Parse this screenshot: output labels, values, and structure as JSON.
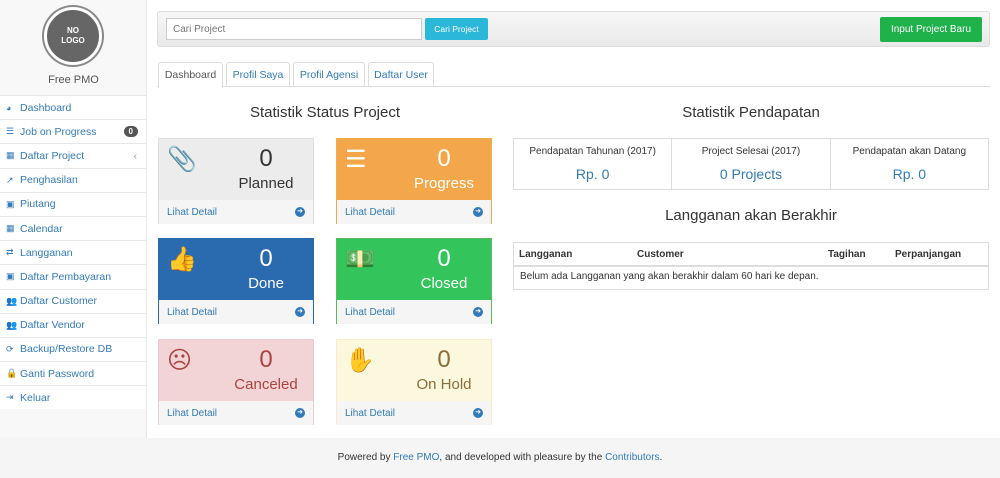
{
  "sidebar": {
    "logo_text": "NO LOGO",
    "brand": "Free PMO",
    "items": [
      {
        "label": "Dashboard",
        "icon": "tachometer-icon",
        "glyph": "◕"
      },
      {
        "label": "Job on Progress",
        "icon": "tasks-icon",
        "glyph": "☰",
        "badge": "0"
      },
      {
        "label": "Daftar Project",
        "icon": "table-icon",
        "glyph": "▦",
        "chevron": "‹"
      },
      {
        "label": "Penghasilan",
        "icon": "line-chart-icon",
        "glyph": "↗"
      },
      {
        "label": "Piutang",
        "icon": "money-icon",
        "glyph": "▣"
      },
      {
        "label": "Calendar",
        "icon": "calendar-icon",
        "glyph": "▦"
      },
      {
        "label": "Langganan",
        "icon": "retweet-icon",
        "glyph": "⇄"
      },
      {
        "label": "Daftar Pembayaran",
        "icon": "money-icon",
        "glyph": "▣"
      },
      {
        "label": "Daftar Customer",
        "icon": "users-icon",
        "glyph": "👥"
      },
      {
        "label": "Daftar Vendor",
        "icon": "users-icon",
        "glyph": "👥"
      },
      {
        "label": "Backup/Restore DB",
        "icon": "refresh-icon",
        "glyph": "⟳"
      },
      {
        "label": "Ganti Password",
        "icon": "lock-icon",
        "glyph": "🔒"
      },
      {
        "label": "Keluar",
        "icon": "sign-out-icon",
        "glyph": "⇥"
      }
    ]
  },
  "topbar": {
    "search_placeholder": "Cari Project",
    "search_button": "Cari Project",
    "new_button": "Input Project Baru"
  },
  "tabs": [
    "Dashboard",
    "Profil Saya",
    "Profil Agensi",
    "Daftar User"
  ],
  "status": {
    "title": "Statistik Status Project",
    "detail_label": "Lihat Detail",
    "boxes": [
      {
        "label": "Planned",
        "count": "0",
        "icon": "paperclip-icon",
        "glyph": "📎",
        "bg": "#ececec",
        "fg": "#333",
        "border": "#ddd"
      },
      {
        "label": "Progress",
        "count": "0",
        "icon": "tasks-icon",
        "glyph": "☰",
        "bg": "#f3a74a",
        "fg": "#fff",
        "border": "#f0ad4e"
      },
      {
        "label": "Done",
        "count": "0",
        "icon": "thumbs-up-icon",
        "glyph": "👍",
        "bg": "#2a6aae",
        "fg": "#fff",
        "border": "#2a6aae"
      },
      {
        "label": "Closed",
        "count": "0",
        "icon": "money-icon",
        "glyph": "💵",
        "bg": "#33c45b",
        "fg": "#fff",
        "border": "#5cb85c"
      },
      {
        "label": "Canceled",
        "count": "0",
        "icon": "frown-icon",
        "glyph": "☹",
        "bg": "#f2d4d6",
        "fg": "#a94442",
        "border": "#ebccd1"
      },
      {
        "label": "On Hold",
        "count": "0",
        "icon": "hand-stop-icon",
        "glyph": "✋",
        "bg": "#fcf8de",
        "fg": "#8a6d3b",
        "border": "#faebcc"
      }
    ]
  },
  "income": {
    "title": "Statistik Pendapatan",
    "stats": [
      {
        "label": "Pendapatan Tahunan (2017)",
        "value": "Rp. 0"
      },
      {
        "label": "Project Selesai (2017)",
        "value": "0 Projects"
      },
      {
        "label": "Pendapatan akan Datang",
        "value": "Rp. 0"
      }
    ]
  },
  "subscriptions": {
    "title": "Langganan akan Berakhir",
    "columns": [
      "Langganan",
      "Customer",
      "Tagihan",
      "Perpanjangan"
    ],
    "empty": "Belum ada Langganan yang akan berakhir dalam 60 hari ke depan."
  },
  "footer": {
    "prefix": "Powered by ",
    "link1": "Free PMO",
    "middle": ", and developed with pleasure by the ",
    "link2": "Contributors",
    "suffix": "."
  }
}
